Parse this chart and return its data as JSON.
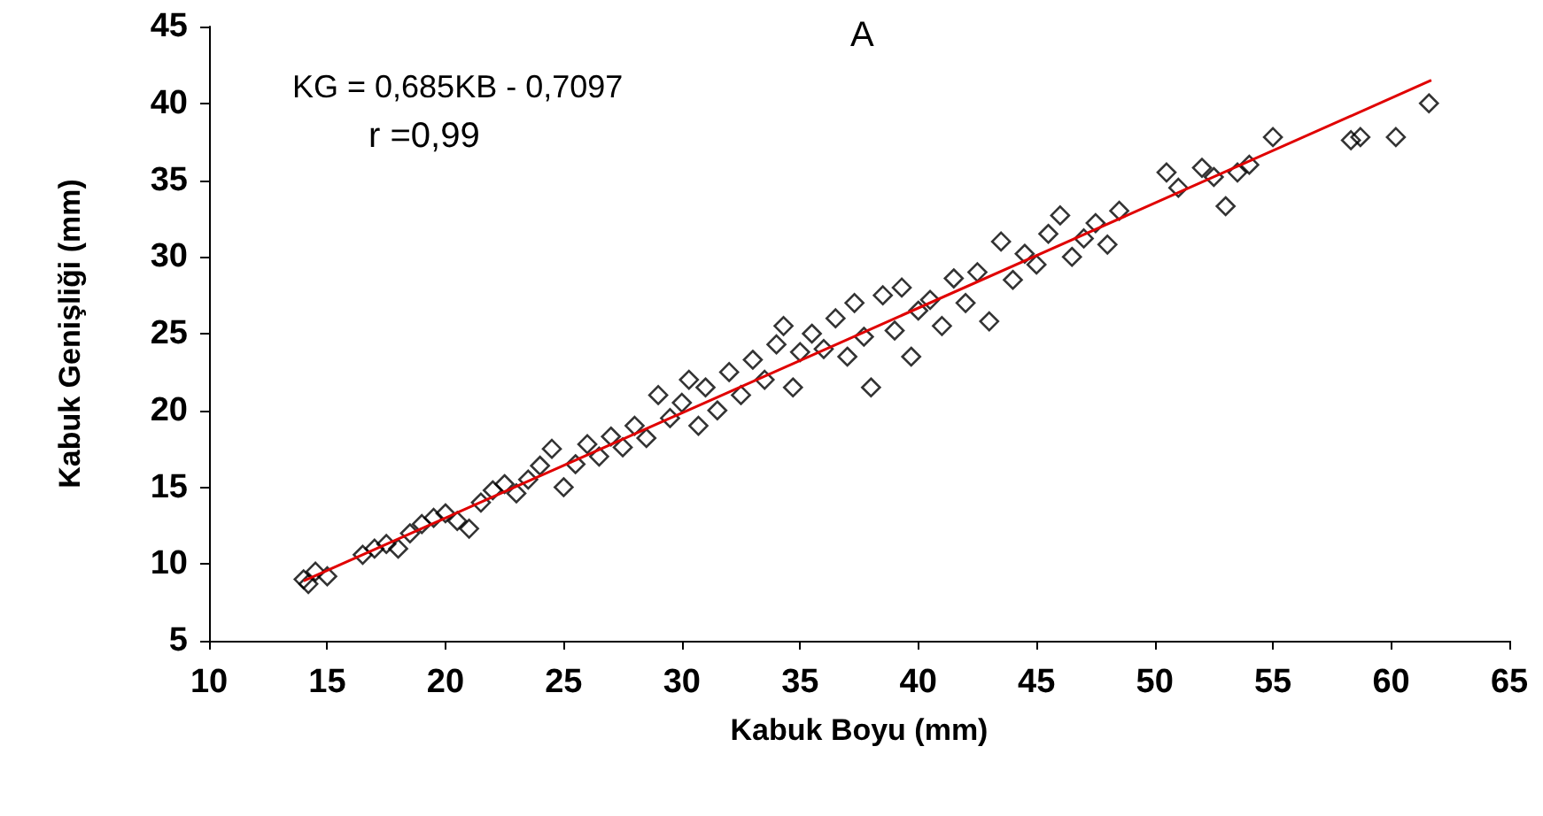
{
  "chart_data": {
    "type": "scatter",
    "xlabel": "Kabuk Boyu (mm)",
    "ylabel": "Kabuk Genişliği (mm)",
    "annotations": [
      "KG = 0,685KB - 0,7097",
      "r =0,99",
      "A"
    ],
    "xlim": [
      10,
      65
    ],
    "xticks": [
      10,
      15,
      20,
      25,
      30,
      35,
      40,
      45,
      50,
      55,
      60,
      65
    ],
    "ylim": [
      5,
      45
    ],
    "yticks": [
      5,
      10,
      15,
      20,
      25,
      30,
      35,
      40,
      45
    ],
    "grid": false,
    "marker": "diamond",
    "series": [
      {
        "color": "#000000",
        "x": [
          14,
          14.2,
          14.5,
          15,
          16.5,
          17,
          17.5,
          18,
          18.5,
          19,
          19.5,
          20,
          20.5,
          21,
          21.5,
          22,
          22.5,
          23,
          23.5,
          24,
          24.5,
          25,
          25.5,
          26,
          26.5,
          27,
          27.5,
          28,
          28.5,
          29,
          29.5,
          30,
          30.3,
          30.7,
          31,
          31.5,
          32,
          32.5,
          33,
          33.5,
          34,
          34.3,
          34.7,
          35,
          35.5,
          36,
          36.5,
          37,
          37.3,
          37.7,
          38,
          38.5,
          39,
          39.3,
          39.7,
          40,
          40.5,
          41,
          41.5,
          42,
          42.5,
          43,
          43.5,
          44,
          44.5,
          45,
          45.5,
          46,
          46.5,
          47,
          47.5,
          48,
          48.5,
          50.5,
          51,
          52,
          52.5,
          53,
          53.5,
          54,
          55,
          58.3,
          58.7,
          60.2,
          61.6
        ],
        "values": [
          9,
          8.7,
          9.5,
          9.2,
          10.6,
          11,
          11.3,
          11,
          12,
          12.6,
          13,
          13.3,
          12.8,
          12.3,
          14,
          14.8,
          15.2,
          14.6,
          15.5,
          16.4,
          17.5,
          15,
          16.5,
          17.8,
          17,
          18.3,
          17.6,
          19,
          18.2,
          21,
          19.5,
          20.5,
          22,
          19,
          21.5,
          20,
          22.5,
          21,
          23.3,
          22,
          24.3,
          25.5,
          21.5,
          23.8,
          25,
          24,
          26,
          23.5,
          27,
          24.8,
          21.5,
          27.5,
          25.2,
          28,
          23.5,
          26.5,
          27.2,
          25.5,
          28.6,
          27,
          29,
          25.8,
          31,
          28.5,
          30.2,
          29.5,
          31.5,
          32.7,
          30,
          31.2,
          32.2,
          30.8,
          33,
          35.5,
          34.5,
          35.8,
          35.2,
          33.3,
          35.5,
          36,
          37.8,
          37.6,
          37.8,
          37.8,
          40
        ]
      },
      {
        "type": "line",
        "color": "#e00000",
        "marker": "none",
        "line_style": "solid",
        "x": [
          14,
          61.7
        ],
        "values": [
          8.9,
          41.5
        ]
      }
    ]
  }
}
